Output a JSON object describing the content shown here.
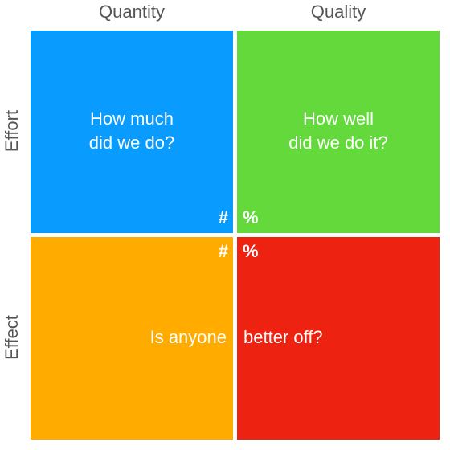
{
  "columns": {
    "quantity": "Quantity",
    "quality": "Quality"
  },
  "rows": {
    "effort": "Effort",
    "effect": "Effect"
  },
  "cells": {
    "top_left": {
      "line1": "How much",
      "line2": "did we do?",
      "symbol": "#",
      "color": "#0a9bff"
    },
    "top_right": {
      "line1": "How well",
      "line2": "did we do it?",
      "symbol": "%",
      "color": "#63d93b"
    },
    "bottom_left": {
      "text": "Is anyone",
      "symbol": "#",
      "color": "#ffab00"
    },
    "bottom_right": {
      "text": "better off?",
      "symbol": "%",
      "color": "#ee2211"
    }
  }
}
